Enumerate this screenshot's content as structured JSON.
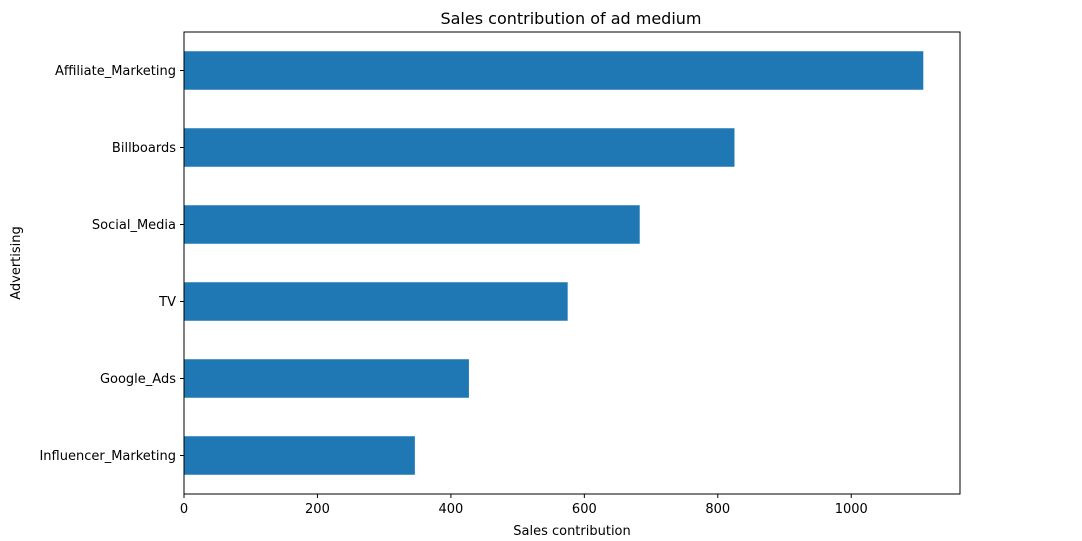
{
  "chart_data": {
    "type": "bar",
    "orientation": "horizontal",
    "title": "Sales contribution of ad medium",
    "xlabel": "Sales contribution",
    "ylabel": "Advertising",
    "categories": [
      "Affiliate_Marketing",
      "Billboards",
      "Social_Media",
      "TV",
      "Google_Ads",
      "Influencer_Marketing"
    ],
    "values": [
      1108,
      825,
      683,
      575,
      427,
      346
    ],
    "xlim": [
      0,
      1163
    ],
    "xticks": [
      0,
      200,
      400,
      600,
      800,
      1000
    ],
    "bar_color": "#1f77b4",
    "grid": false,
    "legend": "none"
  }
}
